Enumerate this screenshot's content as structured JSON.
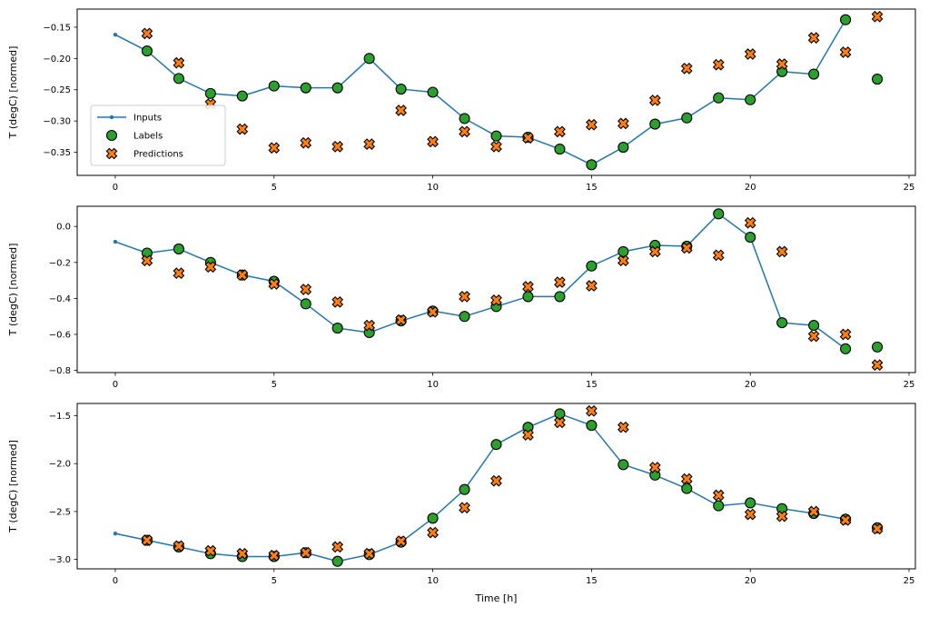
{
  "figure": {
    "xlabel": "Time [h]",
    "background": "#ffffff",
    "legend": {
      "entries": [
        {
          "label": "Inputs",
          "type": "line",
          "color": "#1f77b4"
        },
        {
          "label": "Labels",
          "type": "circle",
          "color": "#2ca02c"
        },
        {
          "label": "Predictions",
          "type": "x",
          "color": "#ff7f0e"
        }
      ]
    }
  },
  "chart_data": [
    {
      "type": "line",
      "title": "",
      "ylabel": "T (degC) [normed]",
      "xlim": [
        -1.2,
        25.2
      ],
      "ylim": [
        -0.387,
        -0.121
      ],
      "xticks": [
        0,
        5,
        10,
        15,
        20,
        25
      ],
      "xtick_labels": [
        "0",
        "5",
        "10",
        "15",
        "20",
        "25"
      ],
      "yticks": [
        -0.35,
        -0.3,
        -0.25,
        -0.2,
        -0.15
      ],
      "ytick_labels": [
        "−0.35",
        "−0.30",
        "−0.25",
        "−0.20",
        "−0.15"
      ],
      "grid": false,
      "legend": true,
      "series": [
        {
          "name": "Inputs",
          "type": "line",
          "color": "#1f77b4",
          "x": [
            0,
            1,
            2,
            3,
            4,
            5,
            6,
            7,
            8,
            9,
            10,
            11,
            12,
            13,
            14,
            15,
            16,
            17,
            18,
            19,
            20,
            21,
            22,
            23
          ],
          "y": [
            -0.162,
            -0.188,
            -0.232,
            -0.256,
            -0.26,
            -0.244,
            -0.247,
            -0.247,
            -0.2,
            -0.249,
            -0.254,
            -0.296,
            -0.324,
            -0.326,
            -0.345,
            -0.37,
            -0.342,
            -0.305,
            -0.295,
            -0.263,
            -0.266,
            -0.221,
            -0.225,
            -0.138
          ]
        },
        {
          "name": "Labels",
          "type": "scatter",
          "marker": "circle",
          "color": "#2ca02c",
          "edge": "#000000",
          "x": [
            1,
            2,
            3,
            4,
            5,
            6,
            7,
            8,
            9,
            10,
            11,
            12,
            13,
            14,
            15,
            16,
            17,
            18,
            19,
            20,
            21,
            22,
            23,
            24
          ],
          "y": [
            -0.188,
            -0.232,
            -0.256,
            -0.26,
            -0.244,
            -0.247,
            -0.247,
            -0.2,
            -0.249,
            -0.254,
            -0.296,
            -0.324,
            -0.326,
            -0.345,
            -0.37,
            -0.342,
            -0.305,
            -0.295,
            -0.263,
            -0.266,
            -0.221,
            -0.225,
            -0.138,
            -0.233
          ]
        },
        {
          "name": "Predictions",
          "type": "scatter",
          "marker": "x",
          "color": "#ff7f0e",
          "edge": "#000000",
          "x": [
            1,
            2,
            3,
            4,
            5,
            6,
            7,
            8,
            9,
            10,
            11,
            12,
            13,
            14,
            15,
            16,
            17,
            18,
            19,
            20,
            21,
            22,
            23,
            24
          ],
          "y": [
            -0.16,
            -0.207,
            -0.273,
            -0.313,
            -0.343,
            -0.335,
            -0.341,
            -0.337,
            -0.283,
            -0.333,
            -0.317,
            -0.341,
            -0.327,
            -0.317,
            -0.306,
            -0.304,
            -0.267,
            -0.216,
            -0.21,
            -0.193,
            -0.209,
            -0.167,
            -0.19,
            -0.133
          ]
        }
      ]
    },
    {
      "type": "line",
      "title": "",
      "ylabel": "T (degC) [normed]",
      "xlim": [
        -1.2,
        25.2
      ],
      "ylim": [
        -0.812,
        0.112
      ],
      "xticks": [
        0,
        5,
        10,
        15,
        20,
        25
      ],
      "xtick_labels": [
        "0",
        "5",
        "10",
        "15",
        "20",
        "25"
      ],
      "yticks": [
        -0.8,
        -0.6,
        -0.4,
        -0.2,
        0.0
      ],
      "ytick_labels": [
        "−0.8",
        "−0.6",
        "−0.4",
        "−0.2",
        "0.0"
      ],
      "grid": false,
      "legend": false,
      "series": [
        {
          "name": "Inputs",
          "type": "line",
          "color": "#1f77b4",
          "x": [
            0,
            1,
            2,
            3,
            4,
            5,
            6,
            7,
            8,
            9,
            10,
            11,
            12,
            13,
            14,
            15,
            16,
            17,
            18,
            19,
            20,
            21,
            22,
            23
          ],
          "y": [
            -0.085,
            -0.148,
            -0.125,
            -0.2,
            -0.27,
            -0.305,
            -0.43,
            -0.565,
            -0.59,
            -0.525,
            -0.47,
            -0.5,
            -0.445,
            -0.39,
            -0.39,
            -0.22,
            -0.14,
            -0.105,
            -0.11,
            0.07,
            -0.06,
            -0.535,
            -0.55,
            -0.68
          ]
        },
        {
          "name": "Labels",
          "type": "scatter",
          "marker": "circle",
          "color": "#2ca02c",
          "edge": "#000000",
          "x": [
            1,
            2,
            3,
            4,
            5,
            6,
            7,
            8,
            9,
            10,
            11,
            12,
            13,
            14,
            15,
            16,
            17,
            18,
            19,
            20,
            21,
            22,
            23,
            24
          ],
          "y": [
            -0.148,
            -0.125,
            -0.2,
            -0.27,
            -0.305,
            -0.43,
            -0.565,
            -0.59,
            -0.525,
            -0.47,
            -0.5,
            -0.445,
            -0.39,
            -0.39,
            -0.22,
            -0.14,
            -0.105,
            -0.11,
            0.07,
            -0.06,
            -0.535,
            -0.55,
            -0.68,
            -0.67
          ]
        },
        {
          "name": "Predictions",
          "type": "scatter",
          "marker": "x",
          "color": "#ff7f0e",
          "edge": "#000000",
          "x": [
            1,
            2,
            3,
            4,
            5,
            6,
            7,
            8,
            9,
            10,
            11,
            12,
            13,
            14,
            15,
            16,
            17,
            18,
            19,
            20,
            21,
            22,
            23,
            24
          ],
          "y": [
            -0.19,
            -0.26,
            -0.225,
            -0.27,
            -0.32,
            -0.35,
            -0.42,
            -0.55,
            -0.52,
            -0.475,
            -0.39,
            -0.41,
            -0.335,
            -0.31,
            -0.33,
            -0.19,
            -0.14,
            -0.12,
            -0.16,
            0.02,
            -0.14,
            -0.61,
            -0.6,
            -0.77
          ]
        }
      ]
    },
    {
      "type": "line",
      "title": "",
      "ylabel": "T (degC) [normed]",
      "xlabel": "Time [h]",
      "xlim": [
        -1.2,
        25.2
      ],
      "ylim": [
        -3.0985,
        -1.3715
      ],
      "xticks": [
        0,
        5,
        10,
        15,
        20,
        25
      ],
      "xtick_labels": [
        "0",
        "5",
        "10",
        "15",
        "20",
        "25"
      ],
      "yticks": [
        -3.0,
        -2.5,
        -2.0,
        -1.5
      ],
      "ytick_labels": [
        "−3.0",
        "−2.5",
        "−2.0",
        "−1.5"
      ],
      "grid": false,
      "legend": false,
      "series": [
        {
          "name": "Inputs",
          "type": "line",
          "color": "#1f77b4",
          "x": [
            0,
            1,
            2,
            3,
            4,
            5,
            6,
            7,
            8,
            9,
            10,
            11,
            12,
            13,
            14,
            15,
            16,
            17,
            18,
            19,
            20,
            21,
            22,
            23
          ],
          "y": [
            -2.73,
            -2.8,
            -2.87,
            -2.94,
            -2.97,
            -2.97,
            -2.93,
            -3.02,
            -2.95,
            -2.82,
            -2.57,
            -2.27,
            -1.8,
            -1.62,
            -1.48,
            -1.6,
            -2.01,
            -2.12,
            -2.26,
            -2.44,
            -2.41,
            -2.47,
            -2.52,
            -2.58
          ]
        },
        {
          "name": "Labels",
          "type": "scatter",
          "marker": "circle",
          "color": "#2ca02c",
          "edge": "#000000",
          "x": [
            1,
            2,
            3,
            4,
            5,
            6,
            7,
            8,
            9,
            10,
            11,
            12,
            13,
            14,
            15,
            16,
            17,
            18,
            19,
            20,
            21,
            22,
            23,
            24
          ],
          "y": [
            -2.8,
            -2.87,
            -2.94,
            -2.97,
            -2.97,
            -2.93,
            -3.02,
            -2.95,
            -2.82,
            -2.57,
            -2.27,
            -1.8,
            -1.62,
            -1.48,
            -1.6,
            -2.01,
            -2.12,
            -2.26,
            -2.44,
            -2.41,
            -2.47,
            -2.52,
            -2.58,
            -2.67
          ]
        },
        {
          "name": "Predictions",
          "type": "scatter",
          "marker": "x",
          "color": "#ff7f0e",
          "edge": "#000000",
          "x": [
            1,
            2,
            3,
            4,
            5,
            6,
            7,
            8,
            9,
            10,
            11,
            12,
            13,
            14,
            15,
            16,
            17,
            18,
            19,
            20,
            21,
            22,
            23,
            24
          ],
          "y": [
            -2.8,
            -2.86,
            -2.91,
            -2.94,
            -2.96,
            -2.93,
            -2.87,
            -2.94,
            -2.81,
            -2.72,
            -2.46,
            -2.18,
            -1.7,
            -1.57,
            -1.45,
            -1.62,
            -2.04,
            -2.16,
            -2.33,
            -2.53,
            -2.55,
            -2.5,
            -2.59,
            -2.68
          ]
        }
      ]
    }
  ]
}
